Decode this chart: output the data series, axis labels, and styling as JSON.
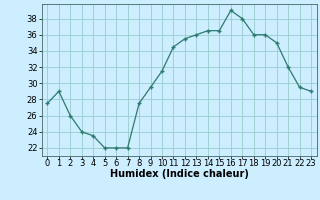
{
  "x": [
    0,
    1,
    2,
    3,
    4,
    5,
    6,
    7,
    8,
    9,
    10,
    11,
    12,
    13,
    14,
    15,
    16,
    17,
    18,
    19,
    20,
    21,
    22,
    23
  ],
  "y": [
    27.5,
    29,
    26,
    24,
    23.5,
    22,
    22,
    22,
    27.5,
    29.5,
    31.5,
    34.5,
    35.5,
    36,
    36.5,
    36.5,
    39,
    38,
    36,
    36,
    35,
    32,
    29.5,
    29
  ],
  "line_color": "#2d7a6e",
  "marker": "+",
  "bg_color": "#cceeff",
  "grid_color": "#99cccc",
  "xlabel": "Humidex (Indice chaleur)",
  "ylabel_ticks": [
    22,
    24,
    26,
    28,
    30,
    32,
    34,
    36,
    38
  ],
  "ylim": [
    21.0,
    39.8
  ],
  "xlim": [
    -0.5,
    23.5
  ],
  "label_fontsize": 7,
  "tick_fontsize": 6
}
